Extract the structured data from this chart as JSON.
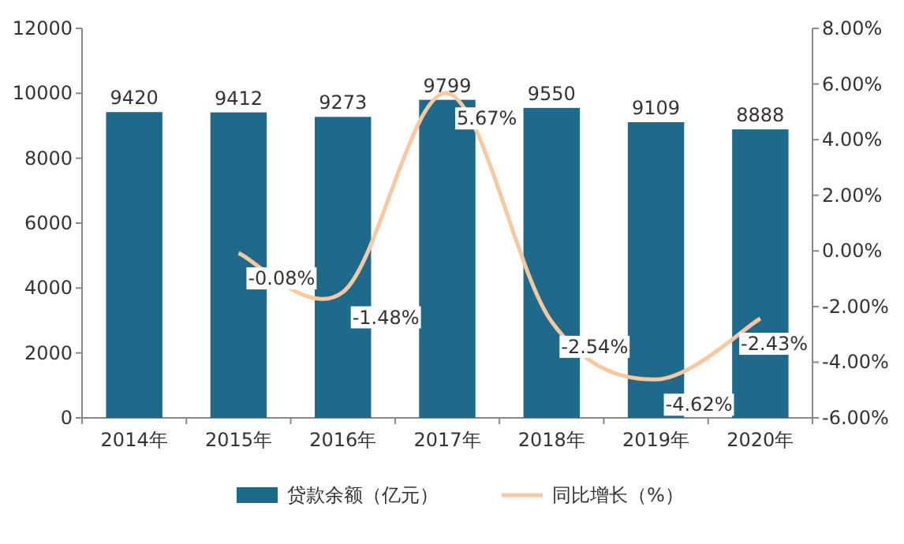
{
  "chart_data": {
    "type": "bar",
    "categories": [
      "2014年",
      "2015年",
      "2016年",
      "2017年",
      "2018年",
      "2019年",
      "2020年"
    ],
    "series": [
      {
        "name": "贷款余额（亿元）",
        "color": "#1f6a8a",
        "values": [
          9420,
          9412,
          9273,
          9799,
          9550,
          9109,
          8888
        ]
      },
      {
        "name": "同比增长（%）",
        "type": "line",
        "axis": "y2",
        "color": "#f8c8a0",
        "values": [
          null,
          -0.08,
          -1.48,
          5.67,
          -2.54,
          -4.62,
          -2.43
        ],
        "value_labels": [
          null,
          "-0.08%",
          "-1.48%",
          "5.67%",
          "-2.54%",
          "-4.62%",
          "-2.43%"
        ]
      }
    ],
    "data_labels": true,
    "ylim": [
      0,
      12000
    ],
    "yticks": [
      0,
      2000,
      4000,
      6000,
      8000,
      10000,
      12000
    ],
    "y2lim": [
      -6,
      8
    ],
    "y2ticks": [
      {
        "value": -6,
        "label": "-6.00%"
      },
      {
        "value": -4,
        "label": "-4.00%"
      },
      {
        "value": -2,
        "label": "-2.00%"
      },
      {
        "value": 0,
        "label": "0.00%"
      },
      {
        "value": 2,
        "label": "2.00%"
      },
      {
        "value": 4,
        "label": "4.00%"
      },
      {
        "value": 6,
        "label": "6.00%"
      },
      {
        "value": 8,
        "label": "8.00%"
      }
    ],
    "legend": "bottom"
  }
}
